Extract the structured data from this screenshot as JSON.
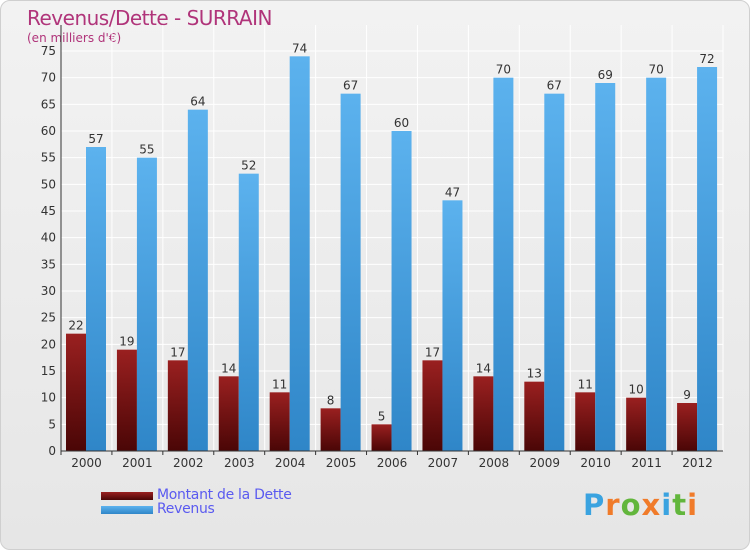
{
  "header": {
    "title": "Revenus/Dette - SURRAIN",
    "subtitle": "(en milliers d'€)"
  },
  "logo": {
    "letters": [
      "P",
      "r",
      "o",
      "x",
      "i",
      "t",
      "i"
    ],
    "colors": [
      "#3aa3e0",
      "#f07b2a",
      "#62b63c",
      "#f07b2a",
      "#3aa3e0",
      "#62b63c",
      "#f07b2a"
    ]
  },
  "chart_data": {
    "type": "bar",
    "title": "Revenus/Dette - SURRAIN",
    "subtitle": "(en milliers d'€)",
    "xlabel": "",
    "ylabel": "",
    "categories": [
      "2000",
      "2001",
      "2002",
      "2003",
      "2004",
      "2005",
      "2006",
      "2007",
      "2008",
      "2009",
      "2010",
      "2011",
      "2012"
    ],
    "series": [
      {
        "name": "Montant de la Dette",
        "color": "#7a1414",
        "values": [
          22,
          19,
          17,
          14,
          11,
          8,
          5,
          17,
          14,
          13,
          11,
          10,
          9
        ]
      },
      {
        "name": "Revenus",
        "color": "#4ea6e6",
        "values": [
          57,
          55,
          64,
          52,
          74,
          67,
          60,
          47,
          70,
          67,
          69,
          70,
          72
        ]
      }
    ],
    "ylim": [
      0,
      75
    ],
    "yticks": [
      0,
      5,
      10,
      15,
      20,
      25,
      30,
      35,
      40,
      45,
      50,
      55,
      60,
      65,
      70,
      75
    ],
    "grid": true,
    "legend": "bottom-left"
  }
}
